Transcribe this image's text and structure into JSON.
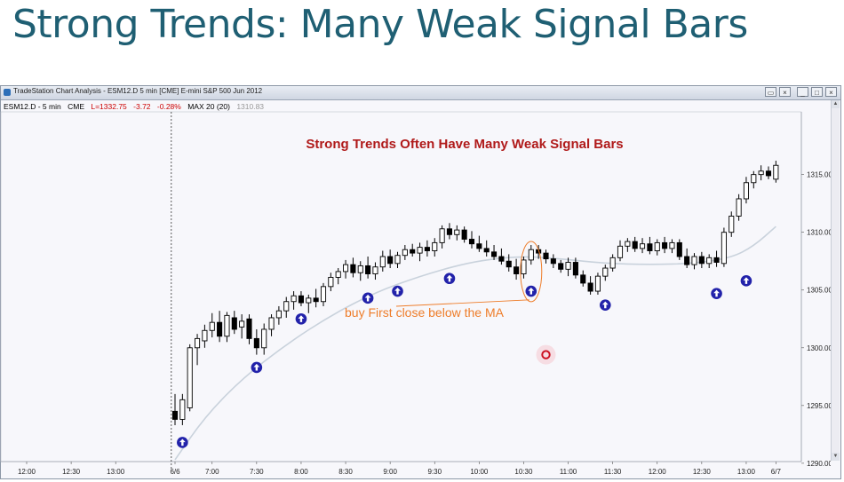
{
  "slide": {
    "title": "Strong Trends: Many Weak Signal Bars"
  },
  "window": {
    "title": "TradeStation Chart Analysis - ESM12.D 5 min [CME] E-mini S&P 500 Jun 2012",
    "buttons": [
      "restore-icon",
      "close-icon",
      "minimize-icon",
      "maximize-icon",
      "close-icon"
    ]
  },
  "symbol_bar": {
    "symbol": "ESM12.D - 5 min",
    "exchange": "CME",
    "last": "L=1332.75",
    "change": "-3.72",
    "change_pct": "-0.28%",
    "indicator": "MAX 20 (20)",
    "indicator_value": "1310.83",
    "colors": {
      "down": "#cc0000",
      "indicator_value": "#999999"
    }
  },
  "chart_data": {
    "type": "candlestick",
    "annotation_title": "Strong Trends Often Have Many Weak Signal Bars",
    "annotation_buy": "buy First close below the MA",
    "y_ticks": [
      "1315.00",
      "1310.00",
      "1305.00",
      "1300.00",
      "1295.00",
      "1290.00"
    ],
    "ylim": [
      1288.3,
      1320.2
    ],
    "x_ticks": [
      {
        "label": "12:00",
        "bar": -20
      },
      {
        "label": "12:30",
        "bar": -14
      },
      {
        "label": "13:00",
        "bar": -8
      },
      {
        "label": "6/6",
        "bar": 0
      },
      {
        "label": "7:00",
        "bar": 5
      },
      {
        "label": "7:30",
        "bar": 11
      },
      {
        "label": "8:00",
        "bar": 17
      },
      {
        "label": "8:30",
        "bar": 23
      },
      {
        "label": "9:00",
        "bar": 29
      },
      {
        "label": "9:30",
        "bar": 35
      },
      {
        "label": "10:00",
        "bar": 41
      },
      {
        "label": "10:30",
        "bar": 47
      },
      {
        "label": "11:00",
        "bar": 53
      },
      {
        "label": "11:30",
        "bar": 59
      },
      {
        "label": "12:00",
        "bar": 65
      },
      {
        "label": "12:30",
        "bar": 71
      },
      {
        "label": "13:00",
        "bar": 77
      },
      {
        "label": "6/7",
        "bar": 81
      }
    ],
    "day_separator_bar": -0.5,
    "bars": [
      {
        "o": 1294.5,
        "h": 1296.0,
        "l": 1293.3,
        "c": 1293.8
      },
      {
        "o": 1293.8,
        "h": 1296.0,
        "l": 1293.3,
        "c": 1295.5
      },
      {
        "o": 1294.8,
        "h": 1300.3,
        "l": 1294.5,
        "c": 1300.0
      },
      {
        "o": 1300.0,
        "h": 1301.2,
        "l": 1298.5,
        "c": 1300.8
      },
      {
        "o": 1300.6,
        "h": 1302.0,
        "l": 1300.0,
        "c": 1301.5
      },
      {
        "o": 1301.5,
        "h": 1303.0,
        "l": 1300.9,
        "c": 1302.2
      },
      {
        "o": 1302.2,
        "h": 1303.2,
        "l": 1300.5,
        "c": 1301.0
      },
      {
        "o": 1301.0,
        "h": 1303.1,
        "l": 1300.5,
        "c": 1302.8
      },
      {
        "o": 1302.6,
        "h": 1303.2,
        "l": 1301.2,
        "c": 1301.6
      },
      {
        "o": 1301.8,
        "h": 1302.9,
        "l": 1300.8,
        "c": 1302.3
      },
      {
        "o": 1302.5,
        "h": 1302.9,
        "l": 1300.3,
        "c": 1300.8
      },
      {
        "o": 1300.8,
        "h": 1301.6,
        "l": 1299.4,
        "c": 1300.0
      },
      {
        "o": 1300.0,
        "h": 1302.1,
        "l": 1299.4,
        "c": 1301.6
      },
      {
        "o": 1301.6,
        "h": 1302.9,
        "l": 1301.0,
        "c": 1302.6
      },
      {
        "o": 1302.6,
        "h": 1303.6,
        "l": 1302.0,
        "c": 1303.2
      },
      {
        "o": 1303.2,
        "h": 1304.4,
        "l": 1302.6,
        "c": 1304.0
      },
      {
        "o": 1304.0,
        "h": 1304.9,
        "l": 1303.3,
        "c": 1304.5
      },
      {
        "o": 1304.5,
        "h": 1304.9,
        "l": 1303.6,
        "c": 1303.9
      },
      {
        "o": 1303.9,
        "h": 1304.6,
        "l": 1303.0,
        "c": 1304.3
      },
      {
        "o": 1304.3,
        "h": 1305.1,
        "l": 1303.5,
        "c": 1304.0
      },
      {
        "o": 1304.0,
        "h": 1305.6,
        "l": 1303.6,
        "c": 1305.3
      },
      {
        "o": 1305.3,
        "h": 1306.5,
        "l": 1304.9,
        "c": 1306.1
      },
      {
        "o": 1306.1,
        "h": 1306.9,
        "l": 1305.5,
        "c": 1306.6
      },
      {
        "o": 1306.6,
        "h": 1307.6,
        "l": 1306.0,
        "c": 1307.2
      },
      {
        "o": 1307.2,
        "h": 1307.8,
        "l": 1306.1,
        "c": 1306.5
      },
      {
        "o": 1306.5,
        "h": 1307.5,
        "l": 1305.8,
        "c": 1307.1
      },
      {
        "o": 1307.1,
        "h": 1307.9,
        "l": 1306.0,
        "c": 1306.4
      },
      {
        "o": 1306.4,
        "h": 1307.4,
        "l": 1305.9,
        "c": 1307.0
      },
      {
        "o": 1307.0,
        "h": 1308.4,
        "l": 1306.6,
        "c": 1307.9
      },
      {
        "o": 1307.9,
        "h": 1308.5,
        "l": 1306.9,
        "c": 1307.3
      },
      {
        "o": 1307.3,
        "h": 1308.3,
        "l": 1306.9,
        "c": 1308.0
      },
      {
        "o": 1308.0,
        "h": 1308.9,
        "l": 1307.6,
        "c": 1308.5
      },
      {
        "o": 1308.5,
        "h": 1309.0,
        "l": 1307.9,
        "c": 1308.2
      },
      {
        "o": 1308.2,
        "h": 1309.1,
        "l": 1307.5,
        "c": 1308.7
      },
      {
        "o": 1308.7,
        "h": 1309.3,
        "l": 1307.9,
        "c": 1308.4
      },
      {
        "o": 1308.4,
        "h": 1309.5,
        "l": 1307.9,
        "c": 1309.1
      },
      {
        "o": 1309.1,
        "h": 1310.6,
        "l": 1308.6,
        "c": 1310.3
      },
      {
        "o": 1310.3,
        "h": 1310.8,
        "l": 1309.4,
        "c": 1309.8
      },
      {
        "o": 1309.8,
        "h": 1310.6,
        "l": 1309.3,
        "c": 1310.2
      },
      {
        "o": 1310.2,
        "h": 1310.5,
        "l": 1309.1,
        "c": 1309.4
      },
      {
        "o": 1309.4,
        "h": 1310.1,
        "l": 1308.6,
        "c": 1309.0
      },
      {
        "o": 1309.0,
        "h": 1309.7,
        "l": 1308.3,
        "c": 1308.6
      },
      {
        "o": 1308.6,
        "h": 1309.3,
        "l": 1307.9,
        "c": 1308.3
      },
      {
        "o": 1308.3,
        "h": 1308.9,
        "l": 1307.6,
        "c": 1307.9
      },
      {
        "o": 1307.9,
        "h": 1308.6,
        "l": 1307.2,
        "c": 1307.5
      },
      {
        "o": 1307.5,
        "h": 1308.1,
        "l": 1306.6,
        "c": 1307.0
      },
      {
        "o": 1307.0,
        "h": 1307.7,
        "l": 1305.9,
        "c": 1306.4
      },
      {
        "o": 1306.4,
        "h": 1307.9,
        "l": 1306.0,
        "c": 1307.6
      },
      {
        "o": 1307.6,
        "h": 1308.9,
        "l": 1307.2,
        "c": 1308.5
      },
      {
        "o": 1308.5,
        "h": 1308.9,
        "l": 1307.7,
        "c": 1308.2
      },
      {
        "o": 1308.2,
        "h": 1308.5,
        "l": 1307.3,
        "c": 1307.7
      },
      {
        "o": 1307.7,
        "h": 1308.1,
        "l": 1306.9,
        "c": 1307.3
      },
      {
        "o": 1307.3,
        "h": 1307.6,
        "l": 1306.5,
        "c": 1306.8
      },
      {
        "o": 1306.8,
        "h": 1307.8,
        "l": 1306.2,
        "c": 1307.4
      },
      {
        "o": 1307.4,
        "h": 1307.8,
        "l": 1306.0,
        "c": 1306.3
      },
      {
        "o": 1306.3,
        "h": 1306.7,
        "l": 1305.3,
        "c": 1305.6
      },
      {
        "o": 1305.6,
        "h": 1306.2,
        "l": 1304.6,
        "c": 1304.9
      },
      {
        "o": 1304.9,
        "h": 1306.5,
        "l": 1304.6,
        "c": 1306.2
      },
      {
        "o": 1306.2,
        "h": 1307.2,
        "l": 1305.8,
        "c": 1306.9
      },
      {
        "o": 1306.9,
        "h": 1308.1,
        "l": 1306.6,
        "c": 1307.8
      },
      {
        "o": 1307.8,
        "h": 1309.3,
        "l": 1307.5,
        "c": 1308.8
      },
      {
        "o": 1308.8,
        "h": 1309.5,
        "l": 1308.3,
        "c": 1309.2
      },
      {
        "o": 1309.2,
        "h": 1309.6,
        "l": 1308.3,
        "c": 1308.6
      },
      {
        "o": 1308.6,
        "h": 1309.5,
        "l": 1308.2,
        "c": 1309.0
      },
      {
        "o": 1309.0,
        "h": 1309.6,
        "l": 1308.1,
        "c": 1308.4
      },
      {
        "o": 1308.4,
        "h": 1309.4,
        "l": 1308.0,
        "c": 1309.1
      },
      {
        "o": 1309.1,
        "h": 1309.6,
        "l": 1308.2,
        "c": 1308.6
      },
      {
        "o": 1308.6,
        "h": 1309.4,
        "l": 1308.2,
        "c": 1309.1
      },
      {
        "o": 1309.1,
        "h": 1309.4,
        "l": 1307.6,
        "c": 1307.9
      },
      {
        "o": 1307.9,
        "h": 1308.6,
        "l": 1306.9,
        "c": 1307.2
      },
      {
        "o": 1307.2,
        "h": 1308.2,
        "l": 1306.8,
        "c": 1307.9
      },
      {
        "o": 1307.9,
        "h": 1308.3,
        "l": 1306.9,
        "c": 1307.3
      },
      {
        "o": 1307.3,
        "h": 1308.1,
        "l": 1306.9,
        "c": 1307.8
      },
      {
        "o": 1307.8,
        "h": 1308.4,
        "l": 1307.0,
        "c": 1307.4
      },
      {
        "o": 1307.3,
        "h": 1310.4,
        "l": 1307.0,
        "c": 1310.0
      },
      {
        "o": 1310.0,
        "h": 1311.8,
        "l": 1309.6,
        "c": 1311.4
      },
      {
        "o": 1311.4,
        "h": 1313.3,
        "l": 1311.0,
        "c": 1312.9
      },
      {
        "o": 1312.9,
        "h": 1314.8,
        "l": 1312.5,
        "c": 1314.3
      },
      {
        "o": 1314.3,
        "h": 1315.3,
        "l": 1313.8,
        "c": 1315.0
      },
      {
        "o": 1315.0,
        "h": 1315.8,
        "l": 1314.5,
        "c": 1315.3
      },
      {
        "o": 1315.3,
        "h": 1315.7,
        "l": 1314.6,
        "c": 1314.9
      },
      {
        "o": 1314.6,
        "h": 1316.2,
        "l": 1314.3,
        "c": 1315.8
      }
    ],
    "moving_average": {
      "bars": [
        0,
        4,
        9,
        15,
        21,
        27,
        33,
        39,
        44,
        48,
        52,
        58,
        64,
        70,
        75,
        78,
        81
      ],
      "values": [
        1290.3,
        1294.0,
        1297.3,
        1300.3,
        1302.8,
        1304.8,
        1306.2,
        1307.3,
        1307.8,
        1307.9,
        1307.7,
        1307.3,
        1307.2,
        1307.3,
        1307.8,
        1308.8,
        1310.5
      ]
    },
    "signal_arrows": [
      {
        "bar": 1,
        "price": 1291.8
      },
      {
        "bar": 11,
        "price": 1298.3
      },
      {
        "bar": 17,
        "price": 1302.5
      },
      {
        "bar": 26,
        "price": 1304.3
      },
      {
        "bar": 30,
        "price": 1304.9
      },
      {
        "bar": 37,
        "price": 1306.0
      },
      {
        "bar": 48,
        "price": 1304.9
      },
      {
        "bar": 58,
        "price": 1303.7
      },
      {
        "bar": 73,
        "price": 1304.7
      },
      {
        "bar": 77,
        "price": 1305.8
      }
    ],
    "highlight": {
      "bar": 48,
      "price_low": 1304.3,
      "price_high": 1308.9
    },
    "cursor_marker": {
      "bar": 50,
      "price": 1299.4
    },
    "colors": {
      "up_body": "#ffffff",
      "down_body": "#000000",
      "wick": "#000000",
      "moving_average": "#c9d2dc",
      "arrow": "#2222aa",
      "highlight": "#ee7d2a",
      "cursor": "#cc1122",
      "annotation_title": "#b01a1a",
      "annotation_buy": "#ee7d2a"
    }
  }
}
